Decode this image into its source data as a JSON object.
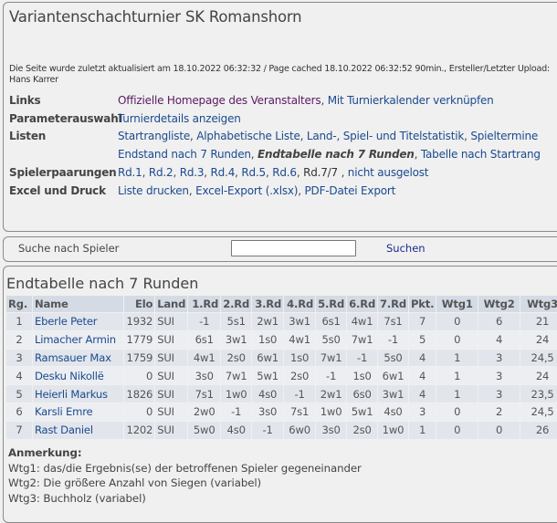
{
  "title": "Variantenschachturnier SK Romanshorn",
  "info": "Die Seite wurde zuletzt aktualisiert am 18.10.2022 06:32:32 / Page cached 18.10.2022 06:32:52 90min., Ersteller/Letzter Upload: Hans Karrer",
  "nav": {
    "links_label": "Links",
    "homepage": "Offizielle Homepage des Veranstalters",
    "calendar": "Mit Turnierkalender verknüpfen",
    "param_label": "Parameterauswahl",
    "details": "Turnierdetails anzeigen",
    "lists_label": "Listen",
    "lists1": [
      "Startrangliste",
      "Alphabetische Liste",
      "Land-, Spiel- und Titelstatistik",
      "Spieltermine"
    ],
    "lists2": [
      "Endstand nach 7 Runden",
      "Endtabelle nach 7 Runden",
      "Tabelle nach Startrang"
    ],
    "pair_label": "Spielerpaarungen",
    "rounds": [
      "Rd.1",
      "Rd.2",
      "Rd.3",
      "Rd.4",
      "Rd.5",
      "Rd.6",
      "Rd.7/7"
    ],
    "not_drawn": "nicht ausgelost",
    "excel_label": "Excel und Druck",
    "excel": [
      "Liste drucken",
      "Excel-Export (.xlsx)",
      "PDF-Datei Export"
    ]
  },
  "search": {
    "label": "Suche nach Spieler",
    "value": "",
    "button": "Suchen"
  },
  "table": {
    "title": "Endtabelle nach 7 Runden",
    "headers": [
      "Rg.",
      "Name",
      "Elo",
      "Land",
      "1.Rd",
      "2.Rd",
      "3.Rd",
      "4.Rd",
      "5.Rd",
      "6.Rd",
      "7.Rd",
      "Pkt.",
      "Wtg1",
      "Wtg2",
      "Wtg3"
    ],
    "rows": [
      [
        "1",
        "Eberle Peter",
        "1932",
        "SUI",
        "-1",
        "5s1",
        "2w1",
        "3w1",
        "6s1",
        "4w1",
        "7s1",
        "7",
        "0",
        "6",
        "21"
      ],
      [
        "2",
        "Limacher Armin",
        "1779",
        "SUI",
        "6s1",
        "3w1",
        "1s0",
        "4w1",
        "5s0",
        "7w1",
        "-1",
        "5",
        "0",
        "4",
        "24"
      ],
      [
        "3",
        "Ramsauer Max",
        "1759",
        "SUI",
        "4w1",
        "2s0",
        "6w1",
        "1s0",
        "7w1",
        "-1",
        "5s0",
        "4",
        "1",
        "3",
        "24,5"
      ],
      [
        "4",
        "Desku Nikollë",
        "0",
        "SUI",
        "3s0",
        "7w1",
        "5w1",
        "2s0",
        "-1",
        "1s0",
        "6w1",
        "4",
        "1",
        "3",
        "24"
      ],
      [
        "5",
        "Heierli Markus",
        "1826",
        "SUI",
        "7s1",
        "1w0",
        "4s0",
        "-1",
        "2w1",
        "6s0",
        "3w1",
        "4",
        "1",
        "3",
        "23,5"
      ],
      [
        "6",
        "Karsli Emre",
        "0",
        "SUI",
        "2w0",
        "-1",
        "3s0",
        "7s1",
        "1w0",
        "5w1",
        "4s0",
        "3",
        "0",
        "2",
        "24,5"
      ],
      [
        "7",
        "Rast Daniel",
        "1202",
        "SUI",
        "5w0",
        "4s0",
        "-1",
        "6w0",
        "3s0",
        "2s0",
        "1w0",
        "1",
        "0",
        "0",
        "26"
      ]
    ]
  },
  "notes": {
    "heading": "Anmerkung:",
    "lines": [
      "Wtg1: das/die Ergebnis(se) der betroffenen Spieler gegeneinander",
      "Wtg2: Die größere Anzahl von Siegen (variabel)",
      "Wtg3: Buchholz (variabel)"
    ]
  }
}
